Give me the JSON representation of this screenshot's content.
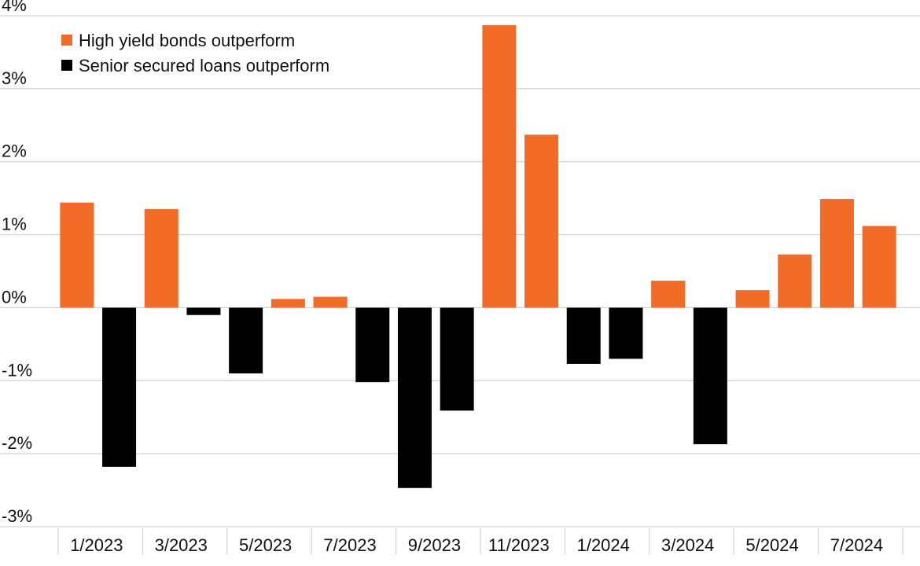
{
  "chart_data": {
    "type": "bar",
    "categories": [
      "1/2023",
      null,
      "3/2023",
      null,
      "5/2023",
      null,
      "7/2023",
      null,
      "9/2023",
      null,
      "11/2023",
      null,
      "1/2024",
      null,
      "3/2024",
      null,
      "5/2024",
      null,
      "7/2024",
      null
    ],
    "series": [
      {
        "name": "High yield bonds outperform",
        "color": "#f26b27",
        "values": [
          1.44,
          null,
          1.35,
          null,
          null,
          0.12,
          0.15,
          null,
          null,
          null,
          3.87,
          2.37,
          null,
          null,
          0.37,
          null,
          0.24,
          0.73,
          1.49,
          1.12
        ]
      },
      {
        "name": "Senior secured loans outperform",
        "color": "#000000",
        "values": [
          null,
          -2.18,
          null,
          -0.1,
          -0.9,
          null,
          null,
          -1.02,
          -2.47,
          -1.41,
          null,
          null,
          -0.77,
          -0.7,
          null,
          -1.87,
          null,
          null,
          null,
          null
        ]
      }
    ],
    "ylim": [
      -3,
      4
    ],
    "yticks": [
      {
        "value": -3,
        "label": "-3%"
      },
      {
        "value": -2,
        "label": "-2%"
      },
      {
        "value": -1,
        "label": "-1%"
      },
      {
        "value": 0,
        "label": "0%"
      },
      {
        "value": 1,
        "label": "1%"
      },
      {
        "value": 2,
        "label": "2%"
      },
      {
        "value": 3,
        "label": "3%"
      },
      {
        "value": 4,
        "label": "4%"
      }
    ],
    "grid": true
  }
}
